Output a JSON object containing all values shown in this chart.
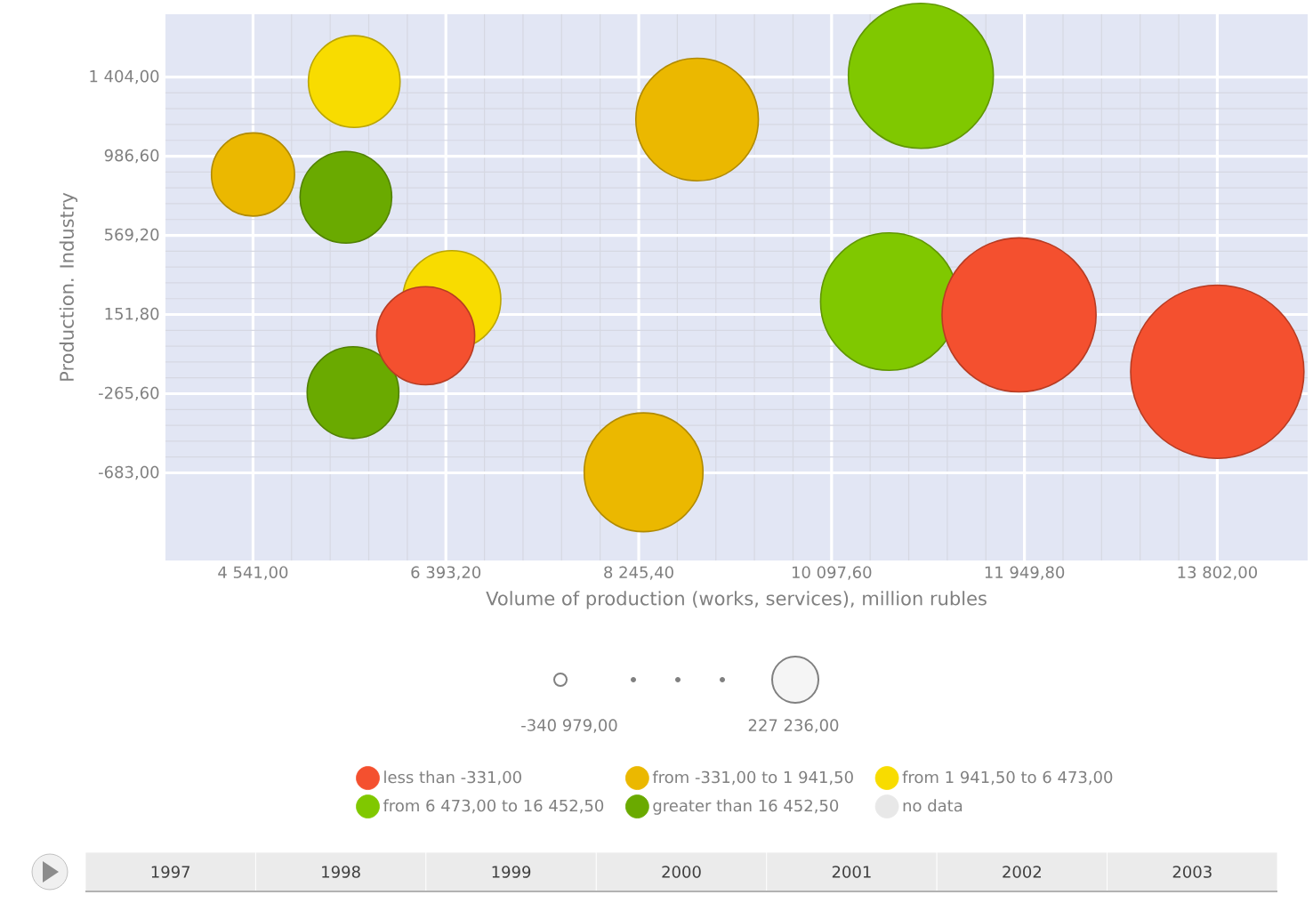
{
  "chart_data": {
    "type": "bubble",
    "xlabel": "Volume of production (works, services), million rubles",
    "ylabel": "Production. Industry",
    "xlim": [
      3700,
      14670
    ],
    "ylim": [
      -1145,
      1735
    ],
    "xticks": [
      {
        "value": 4541,
        "label": "4 541,00"
      },
      {
        "value": 6393.2,
        "label": "6 393,20"
      },
      {
        "value": 8245.4,
        "label": "8 245,40"
      },
      {
        "value": 10097.6,
        "label": "10 097,60"
      },
      {
        "value": 11949.8,
        "label": "11 949,80"
      },
      {
        "value": 13802,
        "label": "13 802,00"
      }
    ],
    "yticks": [
      {
        "value": -683,
        "label": "-683,00"
      },
      {
        "value": -265.6,
        "label": "-265,60"
      },
      {
        "value": 151.8,
        "label": "151,80"
      },
      {
        "value": 569.2,
        "label": "569,20"
      },
      {
        "value": 986.6,
        "label": "986,60"
      },
      {
        "value": 1404,
        "label": "1 404,00"
      }
    ],
    "grid": true,
    "legend": "bottom",
    "series": [
      {
        "name": "less than -331,00",
        "color": "#f4502f",
        "x": [
          6199,
          11898,
          13802
        ],
        "values": [
          40,
          150,
          -150
        ],
        "sizes": [
          0.32,
          0.79,
          1
        ]
      },
      {
        "name": "from -331,00 to 1 941,50",
        "color": "#ebb800",
        "x": [
          4541,
          8292,
          8806
        ],
        "values": [
          890,
          -680,
          1180
        ],
        "sizes": [
          0.23,
          0.47,
          0.5
        ]
      },
      {
        "name": "from 1 941,50 to 6 473,00",
        "color": "#f8dc00",
        "x": [
          5513,
          6450
        ],
        "values": [
          1380,
          230
        ],
        "sizes": [
          0.28,
          0.32
        ]
      },
      {
        "name": "from 6 473,00 to 16 452,50",
        "color": "#80c800",
        "x": [
          10955,
          10652
        ],
        "values": [
          1410,
          220
        ],
        "sizes": [
          0.7,
          0.63
        ]
      },
      {
        "name": "greater than 16 452,50",
        "color": "#6aaa00",
        "x": [
          5433,
          5501
        ],
        "values": [
          770,
          -260
        ],
        "sizes": [
          0.28,
          0.28
        ]
      },
      {
        "name": "no data",
        "color": "#e8e8e8"
      }
    ],
    "annotations": [
      "-340 979,00",
      "227 236,00",
      "1997",
      "1998",
      "1999",
      "2000",
      "2001",
      "2002",
      "2003"
    ]
  }
}
